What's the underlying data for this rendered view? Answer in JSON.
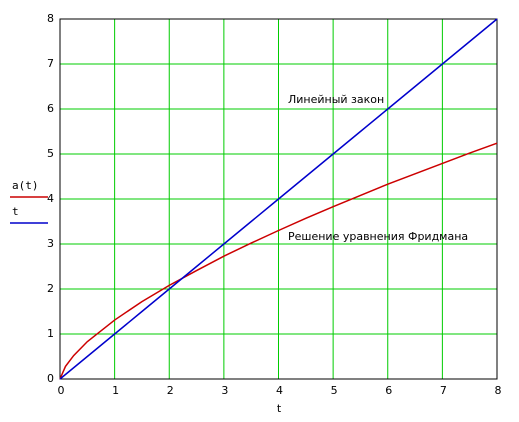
{
  "chart_data": {
    "type": "line",
    "x": [
      0,
      0.1,
      0.25,
      0.5,
      1,
      1.5,
      2,
      2.5,
      3,
      3.5,
      4,
      4.5,
      5,
      5.5,
      6,
      6.5,
      7,
      7.5,
      8
    ],
    "series": [
      {
        "name": "a(t)",
        "color": "#cc0000",
        "values": [
          0,
          0.28,
          0.52,
          0.83,
          1.31,
          1.72,
          2.08,
          2.41,
          2.73,
          3.02,
          3.3,
          3.57,
          3.83,
          4.08,
          4.33,
          4.56,
          4.79,
          5.02,
          5.24
        ]
      },
      {
        "name": "t",
        "color": "#0000cc",
        "values": [
          0,
          0.1,
          0.25,
          0.5,
          1,
          1.5,
          2,
          2.5,
          3,
          3.5,
          4,
          4.5,
          5,
          5.5,
          6,
          6.5,
          7,
          7.5,
          8
        ]
      }
    ],
    "x_label": "t",
    "annotations": [
      "Линейный закон",
      "Решение уравнения Фридмана"
    ],
    "xlim": [
      0,
      8
    ],
    "ylim": [
      0,
      8
    ],
    "xticks": [
      0,
      1,
      2,
      3,
      4,
      5,
      6,
      7,
      8
    ],
    "yticks": [
      0,
      1,
      2,
      3,
      4,
      5,
      6,
      7,
      8
    ],
    "grid": true,
    "grid_color": "#00cc00"
  }
}
